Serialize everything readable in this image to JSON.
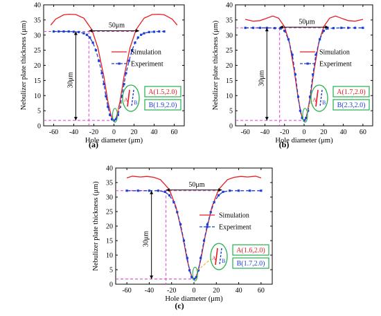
{
  "figure": {
    "units": {
      "x": "μm",
      "y": "μm"
    },
    "colors": {
      "simulation": "#e8191e",
      "experiment": "#1a3fd6",
      "guide": "#e63bd8",
      "annotation_box": "#22b14c",
      "arrow": "#000000",
      "zoom_link": "#f0b429"
    },
    "icon_names": [
      "nozzle-zoom-icon",
      "double-arrow-icon"
    ]
  },
  "chart_data": [
    {
      "type": "line",
      "panel_label": "(a)",
      "xlabel": "Hole diameter (μm)",
      "ylabel": "Nebulizer plate thickness (μm)",
      "xlim": [
        -70,
        70
      ],
      "ylim": [
        0,
        40
      ],
      "xticks": [
        "-60",
        "-40",
        "-20",
        "0",
        "20",
        "40",
        "60"
      ],
      "yticks": [
        "0",
        "5",
        "10",
        "15",
        "20",
        "25",
        "30",
        "35",
        "40"
      ],
      "legend_position": "right",
      "grid": false,
      "annotations": {
        "width_label": "50μm",
        "height_label": "30μm",
        "point_a": "A(1.5,2.0)",
        "point_b": "B(1.9,2.0)"
      },
      "width_span": [
        -25,
        25
      ],
      "guide_y_top": 31.2,
      "guide_y_bottom": 1.8,
      "series": [
        {
          "name": "Simulation",
          "style": "solid",
          "x": [
            -63,
            -58,
            -50,
            -45,
            -38,
            -30,
            -22,
            -16,
            -10,
            -6,
            -3,
            -1.5,
            0,
            1.5,
            3,
            6,
            10,
            16,
            22,
            30,
            38,
            45,
            50,
            58,
            63
          ],
          "y": [
            33.3,
            35.3,
            36.7,
            36.9,
            36.8,
            35.6,
            31.8,
            25.8,
            16.2,
            8.0,
            3.6,
            2.0,
            1.8,
            2.0,
            3.6,
            8.0,
            16.2,
            25.8,
            31.8,
            35.6,
            36.8,
            36.9,
            36.7,
            35.3,
            33.3
          ]
        },
        {
          "name": "Experiment",
          "style": "dashed",
          "x": [
            -60,
            -55,
            -50,
            -45,
            -40,
            -35,
            -30,
            -27,
            -24,
            -21,
            -18,
            -15,
            -12,
            -10,
            -8,
            -6,
            -4,
            -2,
            0,
            2,
            4,
            6,
            8,
            10,
            12,
            15,
            18,
            21,
            24,
            27,
            30,
            35,
            40,
            45,
            50
          ],
          "y": [
            31.2,
            31.2,
            31.2,
            31.2,
            31.1,
            31.0,
            30.6,
            30.1,
            29.2,
            27.5,
            25.0,
            21.5,
            17.4,
            13.8,
            9.8,
            6.3,
            3.6,
            2.2,
            1.8,
            2.2,
            3.6,
            6.3,
            9.8,
            13.8,
            17.4,
            21.5,
            25.0,
            27.5,
            29.2,
            30.1,
            30.6,
            31.0,
            31.1,
            31.2,
            31.2
          ]
        }
      ]
    },
    {
      "type": "line",
      "panel_label": "(b)",
      "xlabel": "Hole diameter (μm)",
      "ylabel": "Nebulizer plate thickness (μm)",
      "xlim": [
        -70,
        70
      ],
      "ylim": [
        0,
        40
      ],
      "xticks": [
        "-60",
        "-40",
        "-20",
        "0",
        "20",
        "40",
        "60"
      ],
      "yticks": [
        "0",
        "5",
        "10",
        "15",
        "20",
        "25",
        "30",
        "35",
        "40"
      ],
      "legend_position": "right",
      "grid": false,
      "annotations": {
        "width_label": "50μm",
        "height_label": "30μm",
        "point_a": "A(1.7,2.0)",
        "point_b": "B(2.3,2.0)"
      },
      "width_span": [
        -25,
        25
      ],
      "guide_y_top": 32.4,
      "guide_y_bottom": 1.8,
      "series": [
        {
          "name": "Simulation",
          "style": "solid",
          "x": [
            -60,
            -52,
            -45,
            -38,
            -32,
            -26,
            -20,
            -15,
            -10,
            -6,
            -3,
            -1.5,
            0,
            1.5,
            3,
            6,
            10,
            15,
            20,
            26,
            32,
            38,
            45,
            52,
            60
          ],
          "y": [
            35.2,
            34.6,
            34.8,
            35.6,
            36.3,
            35.6,
            32.8,
            27.5,
            18.0,
            9.0,
            4.0,
            2.2,
            1.8,
            2.2,
            4.0,
            9.0,
            18.0,
            27.5,
            32.8,
            35.6,
            36.3,
            35.6,
            34.8,
            34.6,
            35.2
          ]
        },
        {
          "name": "Experiment",
          "style": "dashed",
          "x": [
            -60,
            -52,
            -45,
            -38,
            -30,
            -24,
            -20,
            -16,
            -12,
            -9,
            -6,
            -4,
            -2,
            0,
            2,
            4,
            6,
            9,
            12,
            16,
            20,
            24,
            30,
            38,
            45,
            52,
            60
          ],
          "y": [
            32.4,
            32.4,
            32.4,
            32.4,
            32.3,
            32.2,
            31.4,
            28.6,
            23.5,
            17.0,
            9.6,
            5.0,
            2.6,
            1.8,
            2.6,
            5.0,
            9.6,
            17.0,
            23.5,
            28.6,
            31.4,
            32.2,
            32.3,
            32.4,
            32.4,
            32.4,
            32.4
          ]
        }
      ]
    },
    {
      "type": "line",
      "panel_label": "(c)",
      "xlabel": "Hole diameter (μm)",
      "ylabel": "Nebulizer plate thickness (μm)",
      "xlim": [
        -70,
        70
      ],
      "ylim": [
        0,
        40
      ],
      "xticks": [
        "-60",
        "-40",
        "-20",
        "0",
        "20",
        "40",
        "60"
      ],
      "yticks": [
        "0",
        "5",
        "10",
        "15",
        "20",
        "25",
        "30",
        "35",
        "40"
      ],
      "legend_position": "right",
      "grid": false,
      "annotations": {
        "width_label": "50μm",
        "height_label": "30μm",
        "point_a": "A(1.6,2.0)",
        "point_b": "B(1.7,2.0)"
      },
      "width_span": [
        -25,
        25
      ],
      "guide_y_top": 32.2,
      "guide_y_bottom": 1.8,
      "series": [
        {
          "name": "Simulation",
          "style": "solid",
          "x": [
            -60,
            -55,
            -48,
            -42,
            -36,
            -30,
            -22,
            -16,
            -10,
            -6,
            -3,
            -1.5,
            0,
            1.5,
            3,
            6,
            10,
            16,
            22,
            30,
            36,
            42,
            48,
            55,
            60
          ],
          "y": [
            36.6,
            37.2,
            36.9,
            37.1,
            36.8,
            36.0,
            32.6,
            26.5,
            16.4,
            8.2,
            3.8,
            2.1,
            1.8,
            2.1,
            3.8,
            8.2,
            16.4,
            26.5,
            32.6,
            36.0,
            36.8,
            37.1,
            36.9,
            37.2,
            36.6
          ]
        },
        {
          "name": "Experiment",
          "style": "dashed",
          "x": [
            -60,
            -50,
            -40,
            -32,
            -26,
            -22,
            -18,
            -15,
            -12,
            -9,
            -6,
            -4,
            -2,
            0,
            2,
            4,
            6,
            9,
            12,
            15,
            18,
            22,
            26,
            32,
            40,
            50,
            60
          ],
          "y": [
            32.2,
            32.2,
            32.2,
            32.2,
            31.8,
            30.6,
            28.2,
            24.8,
            20.6,
            15.0,
            9.0,
            4.8,
            2.4,
            1.8,
            2.4,
            4.8,
            9.0,
            15.0,
            20.6,
            24.8,
            28.2,
            30.6,
            31.8,
            32.2,
            32.2,
            32.2,
            32.2
          ]
        }
      ]
    }
  ]
}
